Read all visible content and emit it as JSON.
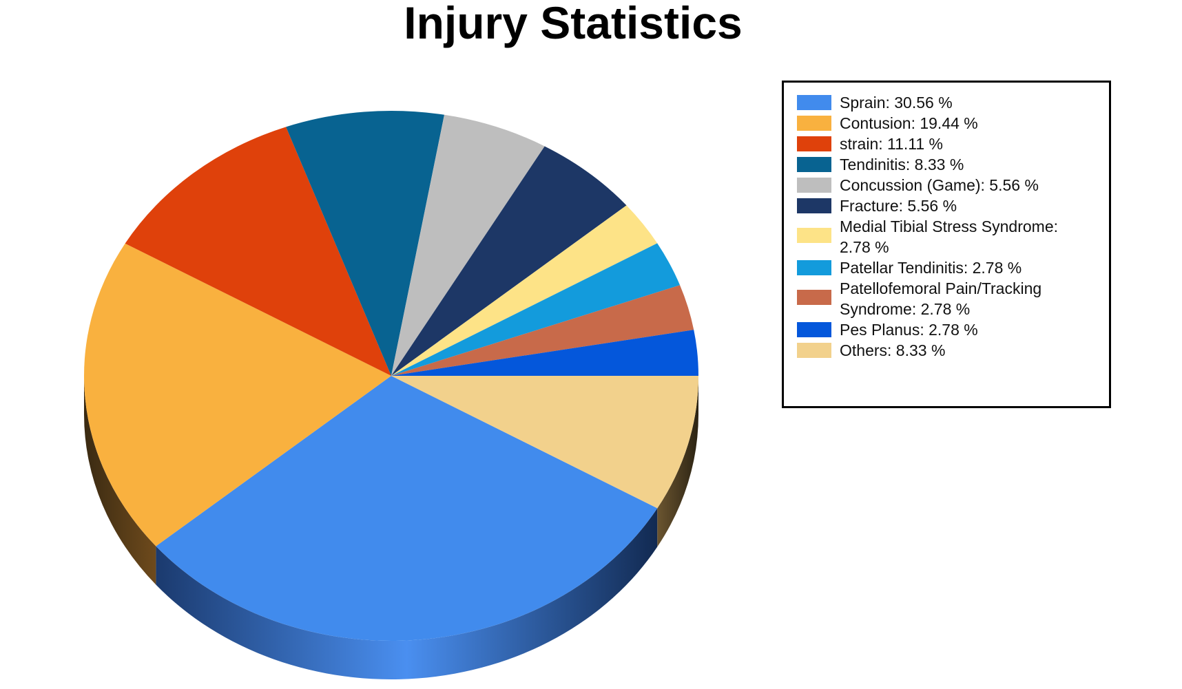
{
  "chart_data": {
    "type": "pie",
    "title": "Injury Statistics",
    "three_d": true,
    "legend_position": "right",
    "slices": [
      {
        "label": "Sprain",
        "value": 30.56,
        "legend_text": "Sprain: 30.56 %",
        "color": "#418BED"
      },
      {
        "label": "Contusion",
        "value": 19.44,
        "legend_text": "Contusion: 19.44 %",
        "color": "#F9B13F"
      },
      {
        "label": "strain",
        "value": 11.11,
        "legend_text": "strain: 11.11 %",
        "color": "#DF410B"
      },
      {
        "label": "Tendinitis",
        "value": 8.33,
        "legend_text": "Tendinitis: 8.33 %",
        "color": "#086391"
      },
      {
        "label": "Concussion (Game)",
        "value": 5.56,
        "legend_text": "Concussion (Game): 5.56 %",
        "color": "#BEBEBE"
      },
      {
        "label": "Fracture",
        "value": 5.56,
        "legend_text": "Fracture: 5.56 %",
        "color": "#1D3766"
      },
      {
        "label": "Medial Tibial Stress Syndrome",
        "value": 2.78,
        "legend_text": "Medial Tibial Stress Syndrome: 2.78 %",
        "color": "#FDE387"
      },
      {
        "label": "Patellar Tendinitis",
        "value": 2.78,
        "legend_text": "Patellar Tendinitis: 2.78 %",
        "color": "#139BDC"
      },
      {
        "label": "Patellofemoral Pain/Tracking Syndrome",
        "value": 2.78,
        "legend_text": "Patellofemoral Pain/Tracking Syndrome: 2.78 %",
        "color": "#C86A4A"
      },
      {
        "label": "Pes Planus",
        "value": 2.78,
        "legend_text": "Pes Planus: 2.78 %",
        "color": "#0457DB"
      },
      {
        "label": "Others",
        "value": 8.33,
        "legend_text": "Others: 8.33 %",
        "color": "#F2D18C"
      }
    ]
  }
}
